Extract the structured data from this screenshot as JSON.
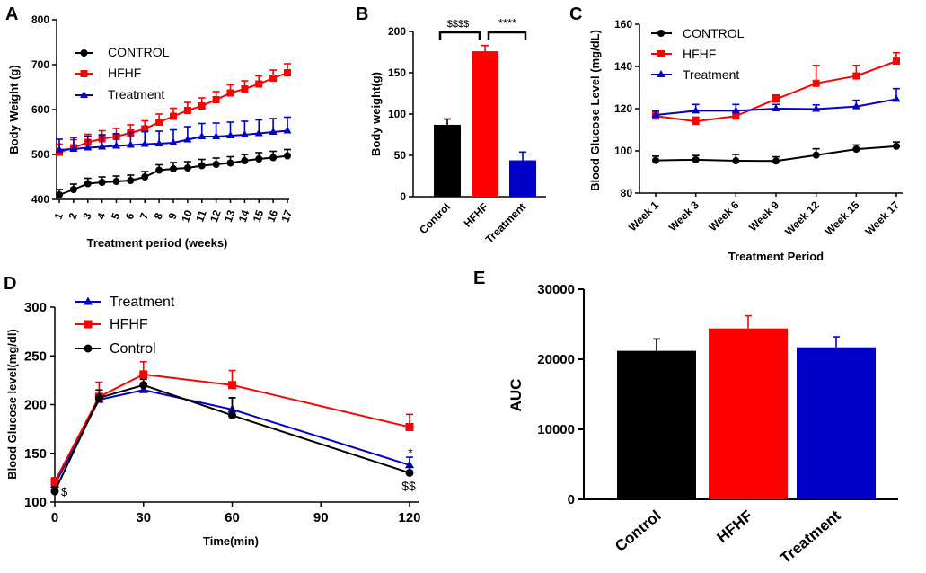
{
  "colors": {
    "control": "#000000",
    "hfhf": "#ff0000",
    "treatment": "#0000c8"
  },
  "chart_data": [
    {
      "panel": "A",
      "type": "line",
      "x": [
        1,
        2,
        3,
        4,
        5,
        6,
        7,
        8,
        9,
        10,
        11,
        12,
        13,
        14,
        15,
        16,
        17
      ],
      "xlabel": "Treatment period (weeks)",
      "ylabel": "Body Weight (g)",
      "ylim": [
        400,
        800
      ],
      "yticks": [
        400,
        500,
        600,
        700,
        800
      ],
      "series": [
        {
          "name": "CONTROL",
          "color": "#000000",
          "marker": "circle",
          "error_dir": 1,
          "values": [
            410,
            422,
            435,
            438,
            440,
            442,
            450,
            465,
            468,
            470,
            475,
            478,
            481,
            486,
            490,
            493,
            497
          ],
          "errors": [
            12,
            12,
            12,
            12,
            12,
            12,
            12,
            12,
            14,
            14,
            14,
            14,
            14,
            14,
            14,
            14,
            14
          ]
        },
        {
          "name": "HFHF",
          "color": "#ff0000",
          "marker": "square",
          "error_dir": 1,
          "values": [
            505,
            515,
            527,
            535,
            540,
            548,
            557,
            572,
            585,
            598,
            608,
            622,
            637,
            646,
            657,
            670,
            682
          ],
          "errors": [
            18,
            18,
            18,
            18,
            18,
            18,
            18,
            18,
            18,
            18,
            18,
            18,
            18,
            18,
            18,
            18,
            20
          ]
        },
        {
          "name": "Treatment",
          "color": "#0000c8",
          "marker": "triangle",
          "error_dir": 1,
          "values": [
            510,
            512,
            515,
            517,
            519,
            521,
            523,
            524,
            526,
            533,
            540,
            540,
            542,
            544,
            547,
            550,
            553
          ],
          "errors": [
            24,
            26,
            26,
            27,
            27,
            28,
            28,
            28,
            29,
            29,
            29,
            30,
            30,
            30,
            30,
            30,
            30
          ]
        }
      ],
      "legend": [
        "CONTROL",
        "HFHF",
        "Treatment"
      ]
    },
    {
      "panel": "B",
      "type": "bar",
      "categories": [
        "Control",
        "HFHF",
        "Treatment"
      ],
      "values": [
        87,
        176,
        44
      ],
      "errors": [
        7,
        7,
        10
      ],
      "colors": [
        "#000000",
        "#ff0000",
        "#0000c8"
      ],
      "ylabel": "Body weight(g)",
      "ylim": [
        0,
        200
      ],
      "yticks": [
        0,
        50,
        100,
        150,
        200
      ],
      "annotations": [
        "$$$$",
        "****"
      ]
    },
    {
      "panel": "C",
      "type": "line",
      "categories": [
        "Week 1",
        "Week 3",
        "Week 6",
        "Week 9",
        "Week 12",
        "Week 15",
        "Week 17"
      ],
      "xlabel": "Treatment Period",
      "ylabel": "Blood Glucose Level (mg/dL)",
      "ylim": [
        80,
        160
      ],
      "yticks": [
        80,
        100,
        120,
        140,
        160
      ],
      "series": [
        {
          "name": "CONTROL",
          "color": "#000000",
          "marker": "circle",
          "error_dir": 1,
          "values": [
            95.5,
            95.8,
            95.3,
            95.2,
            98,
            100.8,
            102.2
          ],
          "errors": [
            2,
            2,
            3,
            2,
            3,
            2,
            2
          ]
        },
        {
          "name": "HFHF",
          "color": "#ff0000",
          "marker": "square",
          "error_dir": 1,
          "values": [
            116.5,
            114,
            116.5,
            124.5,
            132,
            135.5,
            142.5
          ],
          "errors": [
            2,
            2,
            2,
            2,
            8.5,
            5,
            4
          ]
        },
        {
          "name": "Treatment",
          "color": "#0000c8",
          "marker": "triangle",
          "error_dir": 1,
          "values": [
            117,
            119,
            119,
            120,
            119.8,
            121,
            124.5
          ],
          "errors": [
            2,
            3,
            3,
            2,
            2,
            3,
            5
          ]
        }
      ],
      "legend": [
        "CONTROL",
        "HFHF",
        "Treatment"
      ]
    },
    {
      "panel": "D",
      "type": "line",
      "x": [
        0,
        15,
        30,
        60,
        120
      ],
      "xlabel": "Time(min)",
      "ylabel": "Blood Glucose level(mg/dl)",
      "xlim": [
        0,
        120
      ],
      "xticks": [
        0,
        30,
        60,
        90,
        120
      ],
      "ylim": [
        100,
        300
      ],
      "yticks": [
        100,
        150,
        200,
        250,
        300
      ],
      "series": [
        {
          "name": "Treatment",
          "color": "#0000c8",
          "marker": "triangle",
          "error_dir": 1,
          "values": [
            118,
            205,
            215,
            195,
            138
          ],
          "errors": [
            4,
            6,
            6,
            12,
            8
          ]
        },
        {
          "name": "HFHF",
          "color": "#ff0000",
          "marker": "square",
          "error_dir": 1,
          "values": [
            121,
            208,
            231,
            220,
            177
          ],
          "errors": [
            4,
            15,
            13,
            15,
            13
          ]
        },
        {
          "name": "Control",
          "color": "#000000",
          "marker": "circle",
          "error_dir": 1,
          "values": [
            111,
            207,
            220,
            189,
            130
          ],
          "errors": [
            4,
            8,
            6,
            18,
            6
          ]
        }
      ],
      "legend": [
        "Treatment",
        "HFHF",
        "Control"
      ],
      "annotations": [
        "$",
        "*",
        "$$"
      ]
    },
    {
      "panel": "E",
      "type": "bar",
      "categories": [
        "Control",
        "HFHF",
        "Treatment"
      ],
      "values": [
        21200,
        24400,
        21700
      ],
      "errors": [
        1700,
        1800,
        1500
      ],
      "colors": [
        "#000000",
        "#ff0000",
        "#0000c8"
      ],
      "ylabel": "AUC",
      "ylim": [
        0,
        30000
      ],
      "yticks": [
        0,
        10000,
        20000,
        30000
      ]
    }
  ]
}
